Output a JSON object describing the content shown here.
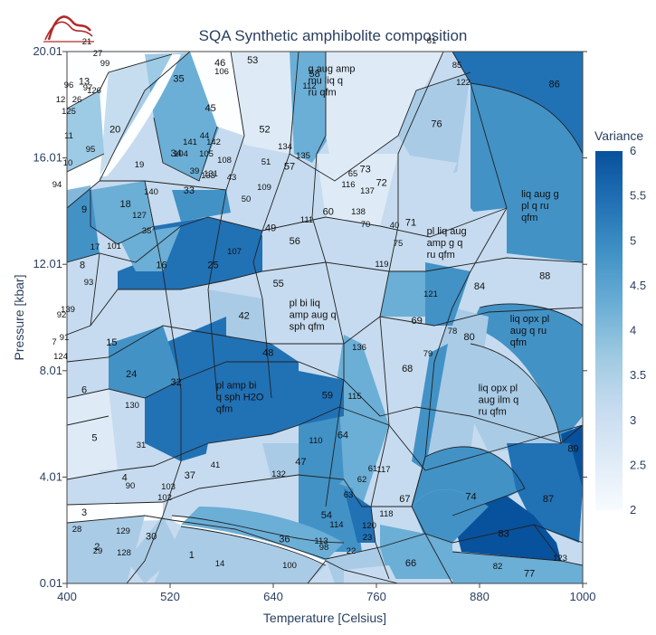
{
  "chart_data": {
    "type": "heatmap",
    "title": "SQA Synthetic amphibolite composition",
    "xlabel": "Temperature [Celsius]",
    "ylabel": "Pressure [kbar]",
    "xlim": [
      400,
      1000
    ],
    "ylim": [
      0.01,
      20.01
    ],
    "xticks": [
      400,
      520,
      640,
      760,
      880,
      1000
    ],
    "yticks": [
      "0.01",
      "4.01",
      "8.01",
      "12.01",
      "16.01",
      "20.01"
    ],
    "colorbar": {
      "title": "Variance",
      "range": [
        2,
        6
      ],
      "ticks": [
        "2",
        "2.5",
        "3",
        "3.5",
        "4",
        "4.5",
        "5",
        "5.5",
        "6"
      ],
      "colors": [
        "#f7fbff",
        "#deebf7",
        "#c6dbef",
        "#9ecae1",
        "#6baed6",
        "#4292c6",
        "#2171b5",
        "#08519c"
      ]
    },
    "fields": [
      {
        "label": "1",
        "T": 545,
        "P": 1.1,
        "v": 4
      },
      {
        "label": "2",
        "T": 435,
        "P": 1.4,
        "v": 4
      },
      {
        "label": "3",
        "T": 420,
        "P": 2.7,
        "v": 2
      },
      {
        "label": "4",
        "T": 467,
        "P": 4.0,
        "v": 3
      },
      {
        "label": "5",
        "T": 432,
        "P": 5.5,
        "v": 2
      },
      {
        "label": "6",
        "T": 420,
        "P": 7.3,
        "v": 3
      },
      {
        "label": "8",
        "T": 418,
        "P": 12.0,
        "v": 3
      },
      {
        "label": "9",
        "T": 420,
        "P": 14.1,
        "v": 4
      },
      {
        "label": "13",
        "T": 420,
        "P": 18.9,
        "v": 3
      },
      {
        "label": "15",
        "T": 452,
        "P": 9.1,
        "v": 3
      },
      {
        "label": "16",
        "T": 510,
        "P": 12.0,
        "v": 4
      },
      {
        "label": "18",
        "T": 468,
        "P": 14.3,
        "v": 4
      },
      {
        "label": "20",
        "T": 456,
        "P": 17.1,
        "v": 3
      },
      {
        "label": "24",
        "T": 475,
        "P": 7.9,
        "v": 5
      },
      {
        "label": "25",
        "T": 570,
        "P": 12.0,
        "v": 5
      },
      {
        "label": "30",
        "T": 498,
        "P": 1.8,
        "v": 3
      },
      {
        "label": "32",
        "T": 527,
        "P": 7.6,
        "v": 4
      },
      {
        "label": "33",
        "T": 542,
        "P": 14.8,
        "v": 4
      },
      {
        "label": "34",
        "T": 527,
        "P": 16.2,
        "v": 3
      },
      {
        "label": "35",
        "T": 530,
        "P": 19.0,
        "v": 4
      },
      {
        "label": "36",
        "T": 653,
        "P": 1.7,
        "v": 4
      },
      {
        "label": "37",
        "T": 543,
        "P": 4.1,
        "v": 4
      },
      {
        "label": "42",
        "T": 606,
        "P": 10.1,
        "v": 3
      },
      {
        "label": "45",
        "T": 567,
        "P": 17.9,
        "v": 4
      },
      {
        "label": "46",
        "T": 578,
        "P": 19.6,
        "v": 3
      },
      {
        "label": "47",
        "T": 672,
        "P": 4.6,
        "v": 4
      },
      {
        "label": "48",
        "T": 634,
        "P": 8.7,
        "v": 3
      },
      {
        "label": "49",
        "T": 637,
        "P": 13.4,
        "v": 4
      },
      {
        "label": "52",
        "T": 630,
        "P": 17.1,
        "v": 3
      },
      {
        "label": "53",
        "T": 616,
        "P": 19.7,
        "v": 3
      },
      {
        "label": "54",
        "T": 702,
        "P": 2.6,
        "v": 5
      },
      {
        "label": "55",
        "T": 646,
        "P": 11.3,
        "v": 3
      },
      {
        "label": "56",
        "T": 665,
        "P": 12.9,
        "v": 3
      },
      {
        "label": "57",
        "T": 659,
        "P": 15.7,
        "v": 4
      },
      {
        "label": "58",
        "T": 688,
        "P": 19.2,
        "v": 4
      },
      {
        "label": "59",
        "T": 703,
        "P": 7.1,
        "v": 5
      },
      {
        "label": "60",
        "T": 704,
        "P": 14.0,
        "v": 3
      },
      {
        "label": "64",
        "T": 721,
        "P": 5.6,
        "v": 4
      },
      {
        "label": "66",
        "T": 800,
        "P": 0.8,
        "v": 4
      },
      {
        "label": "67",
        "T": 793,
        "P": 3.2,
        "v": 4
      },
      {
        "label": "68",
        "T": 796,
        "P": 8.1,
        "v": 3
      },
      {
        "label": "69",
        "T": 807,
        "P": 9.9,
        "v": 4
      },
      {
        "label": "71",
        "T": 800,
        "P": 13.6,
        "v": 3
      },
      {
        "label": "72",
        "T": 766,
        "P": 15.1,
        "v": 3
      },
      {
        "label": "73",
        "T": 747,
        "P": 15.6,
        "v": 3
      },
      {
        "label": "74",
        "T": 870,
        "P": 3.3,
        "v": 5
      },
      {
        "label": "76",
        "T": 830,
        "P": 17.3,
        "v": 4
      },
      {
        "label": "77",
        "T": 938,
        "P": 0.4,
        "v": 4
      },
      {
        "label": "80",
        "T": 868,
        "P": 9.3,
        "v": 4
      },
      {
        "label": "83",
        "T": 908,
        "P": 1.9,
        "v": 6
      },
      {
        "label": "84",
        "T": 880,
        "P": 11.2,
        "v": 3
      },
      {
        "label": "86",
        "T": 967,
        "P": 18.8,
        "v": 6
      },
      {
        "label": "87",
        "T": 960,
        "P": 3.2,
        "v": 5
      },
      {
        "label": "88",
        "T": 956,
        "P": 11.6,
        "v": 4
      },
      {
        "label": "89",
        "T": 989,
        "P": 5.1,
        "v": 6
      }
    ],
    "small_labels": [
      "7",
      "10",
      "11",
      "12",
      "14",
      "17",
      "19",
      "21",
      "22",
      "23",
      "26",
      "27",
      "28",
      "29",
      "31",
      "38",
      "39",
      "40",
      "41",
      "43",
      "44",
      "50",
      "51",
      "61",
      "62",
      "63",
      "65",
      "70",
      "75",
      "78",
      "79",
      "81",
      "82",
      "85",
      "90",
      "91",
      "92",
      "93",
      "94",
      "95",
      "96",
      "97",
      "98",
      "99",
      "100",
      "101",
      "102",
      "103",
      "104",
      "105",
      "106",
      "107",
      "108",
      "109",
      "110",
      "111",
      "112",
      "113",
      "114",
      "115",
      "116",
      "117",
      "118",
      "119",
      "120",
      "121",
      "122",
      "123",
      "124",
      "125",
      "126",
      "127",
      "128",
      "129",
      "130",
      "131",
      "132",
      "133",
      "134",
      "135",
      "136",
      "137",
      "138",
      "139",
      "140",
      "141",
      "142"
    ],
    "annotations": [
      {
        "text": "g aug amp\nmu liq q\nru qfm",
        "T": 710,
        "P": 18.9
      },
      {
        "text": "liq aug g\npl q ru\nqfm",
        "T": 958,
        "P": 14.2
      },
      {
        "text": "pl liq aug\namp g q\nru qfm",
        "T": 848,
        "P": 12.8
      },
      {
        "text": "pl bi liq\namp aug q\nsph qfm",
        "T": 688,
        "P": 10.1
      },
      {
        "text": "liq opx pl\naug q ru\nqfm",
        "T": 945,
        "P": 9.5
      },
      {
        "text": "pl amp bi\nq sph H2O\nqfm",
        "T": 603,
        "P": 7.0
      },
      {
        "text": "liq opx pl\naug ilm q\nru qfm",
        "T": 908,
        "P": 6.9
      }
    ]
  }
}
